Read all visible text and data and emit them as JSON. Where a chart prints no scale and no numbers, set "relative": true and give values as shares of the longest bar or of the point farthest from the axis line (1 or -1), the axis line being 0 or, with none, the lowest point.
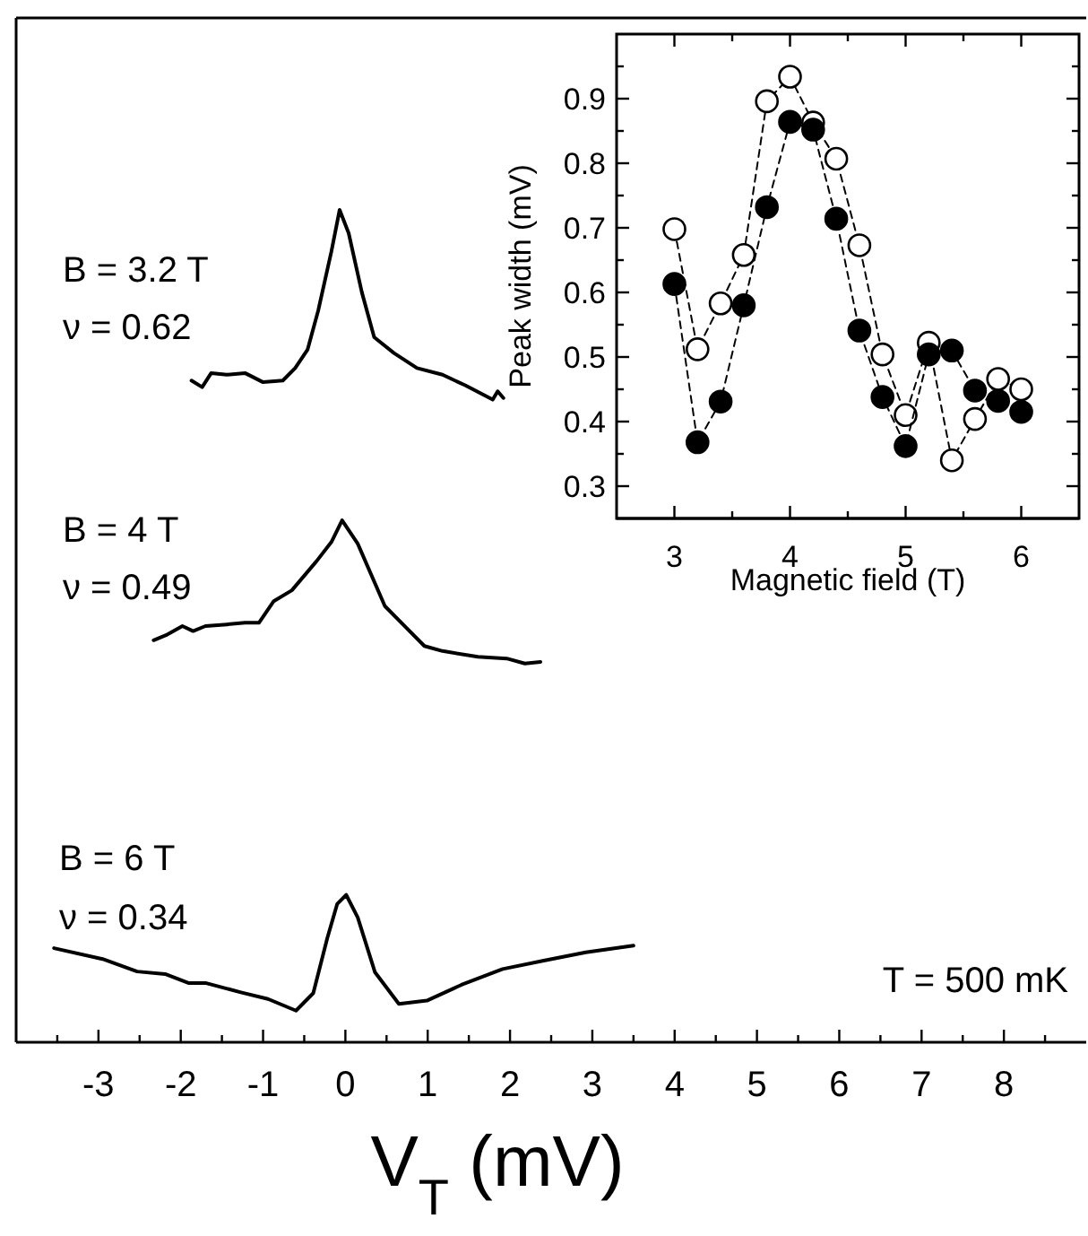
{
  "chart_data": [
    {
      "type": "line",
      "relative": true,
      "xlabel": "V$_{T}$ (mV)",
      "xlim": [
        -4,
        9
      ],
      "xticks": [
        -3,
        -2,
        -1,
        0,
        1,
        2,
        3,
        4,
        5,
        6,
        7,
        8,
        {
          "value": -3.5,
          "label": null
        },
        {
          "value": -2.5,
          "label": null
        },
        {
          "value": -1.5,
          "label": null
        },
        {
          "value": -0.5,
          "label": null
        },
        {
          "value": 0.5,
          "label": null
        },
        {
          "value": 1.5,
          "label": null
        },
        {
          "value": 2.5,
          "label": null
        },
        {
          "value": 3.5,
          "label": null
        },
        {
          "value": 4.5,
          "label": null
        },
        {
          "value": 5.5,
          "label": null
        },
        {
          "value": 6.5,
          "label": null
        },
        {
          "value": 7.5,
          "label": null
        },
        {
          "value": 8.5,
          "label": null
        }
      ],
      "tick_labels": "x",
      "line_style": "solid",
      "marker": "none",
      "series": [
        {
          "color": "#000000",
          "x": [
            -1.87,
            -1.74,
            -1.63,
            -1.44,
            -1.22,
            -1.0,
            -0.76,
            -0.61,
            -0.46,
            -0.33,
            -0.17,
            -0.07,
            0.04,
            0.2,
            0.35,
            0.59,
            0.87,
            1.18,
            1.46,
            1.79,
            1.85,
            1.92
          ],
          "values": [
            0.795,
            0.787,
            0.804,
            0.802,
            0.804,
            0.793,
            0.795,
            0.81,
            0.832,
            0.879,
            0.95,
            1.0,
            0.972,
            0.901,
            0.847,
            0.828,
            0.81,
            0.802,
            0.789,
            0.772,
            0.782,
            0.774
          ]
        },
        {
          "color": "#000000",
          "x": [
            -2.33,
            -2.18,
            -1.98,
            -1.85,
            -1.7,
            -1.44,
            -1.22,
            -1.05,
            -0.87,
            -0.65,
            -0.35,
            -0.17,
            -0.04,
            0.15,
            0.48,
            0.74,
            0.96,
            1.18,
            1.61,
            1.96,
            2.18,
            2.37
          ],
          "values": [
            0.483,
            0.489,
            0.5,
            0.494,
            0.5,
            0.502,
            0.504,
            0.504,
            0.53,
            0.543,
            0.578,
            0.601,
            0.627,
            0.599,
            0.524,
            0.498,
            0.476,
            0.47,
            0.463,
            0.461,
            0.455,
            0.457
          ]
        },
        {
          "color": "#000000",
          "x": [
            -3.54,
            -2.95,
            -2.53,
            -2.19,
            -1.9,
            -1.69,
            -1.27,
            -0.94,
            -0.6,
            -0.39,
            -0.22,
            -0.1,
            0.01,
            0.15,
            0.36,
            0.65,
            0.99,
            1.41,
            1.91,
            2.41,
            2.92,
            3.5
          ],
          "values": [
            0.113,
            0.1,
            0.085,
            0.082,
            0.071,
            0.071,
            0.06,
            0.052,
            0.038,
            0.059,
            0.125,
            0.166,
            0.177,
            0.15,
            0.084,
            0.046,
            0.05,
            0.069,
            0.088,
            0.098,
            0.108,
            0.116
          ]
        }
      ],
      "annotations": [
        "B = 3.2 T",
        "ν = 0.62",
        "B = 4 T",
        "ν = 0.49",
        "B = 6 T",
        "ν = 0.34",
        "T = 500 mK"
      ]
    },
    {
      "type": "line",
      "xlabel": "Magnetic field (T)",
      "ylabel": "Peak width (mV)",
      "xlim": [
        2.5,
        6.5
      ],
      "ylim": [
        0.25,
        1.0
      ],
      "xticks": [
        3,
        4,
        5,
        6,
        {
          "value": 3.5,
          "label": null
        },
        {
          "value": 4.5,
          "label": null
        },
        {
          "value": 5.5,
          "label": null
        }
      ],
      "yticks": [
        0.3,
        0.4,
        0.5,
        0.6,
        0.7,
        0.8,
        0.9,
        {
          "value": 0.35,
          "label": null
        },
        {
          "value": 0.45,
          "label": null
        },
        {
          "value": 0.55,
          "label": null
        },
        {
          "value": 0.65,
          "label": null
        },
        {
          "value": 0.75,
          "label": null
        },
        {
          "value": 0.85,
          "label": null
        },
        {
          "value": 0.95,
          "label": null
        }
      ],
      "marker": "circle",
      "line_style": "dashed",
      "x": [
        3.0,
        3.2,
        3.4,
        3.6,
        3.8,
        4.0,
        4.2,
        4.4,
        4.6,
        4.8,
        5.0,
        5.2,
        5.4,
        5.6,
        5.8,
        6.0
      ],
      "series": [
        {
          "color": "#ffffff",
          "values": [
            0.698,
            0.512,
            0.583,
            0.658,
            0.896,
            0.934,
            0.863,
            0.807,
            0.673,
            0.504,
            0.41,
            0.522,
            0.34,
            0.404,
            0.466,
            0.45
          ]
        },
        {
          "color": "#000000",
          "values": [
            0.613,
            0.368,
            0.431,
            0.58,
            0.732,
            0.864,
            0.852,
            0.714,
            0.541,
            0.438,
            0.362,
            0.504,
            0.51,
            0.448,
            0.432,
            0.415
          ]
        }
      ]
    }
  ]
}
